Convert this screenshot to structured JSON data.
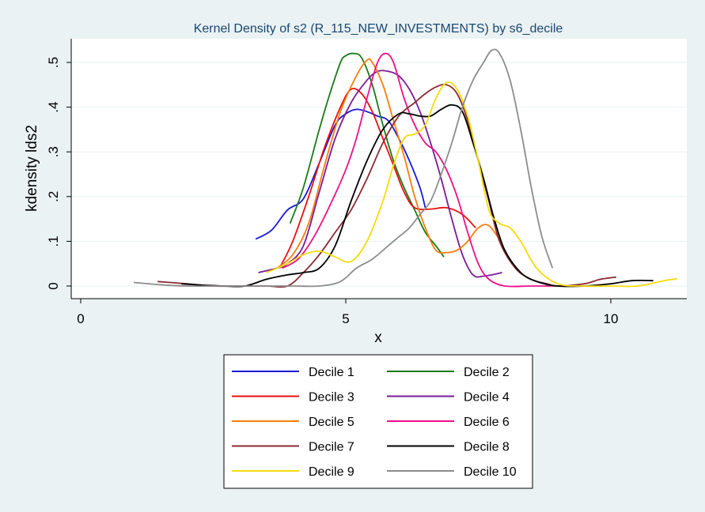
{
  "chart_data": {
    "type": "line",
    "title": "Kernel Density of s2 (R_115_NEW_INVESTMENTS) by s6_decile",
    "xlabel": "x",
    "ylabel": "kdensity lds2",
    "xlim": [
      0,
      11.5
    ],
    "ylim": [
      0,
      0.53
    ],
    "xticks": [
      0,
      5,
      10
    ],
    "xtick_labels": [
      "0",
      "5",
      "10"
    ],
    "yticks": [
      0,
      0.1,
      0.2,
      0.3,
      0.4,
      0.5
    ],
    "ytick_labels": [
      "0",
      ".1",
      ".2",
      ".3",
      ".4",
      ".5"
    ],
    "grid": true,
    "legend_position": "bottom",
    "series": [
      {
        "name": "Decile 1",
        "color": "#1a1ad6",
        "x": [
          3.3,
          3.6,
          3.9,
          4.2,
          4.5,
          4.8,
          5.0,
          5.2,
          5.4,
          5.6,
          5.8,
          6.0,
          6.2,
          6.4,
          6.5
        ],
        "y": [
          0.105,
          0.125,
          0.17,
          0.195,
          0.275,
          0.36,
          0.385,
          0.395,
          0.39,
          0.38,
          0.37,
          0.33,
          0.28,
          0.22,
          0.175
        ]
      },
      {
        "name": "Decile 2",
        "color": "#1a7a1a",
        "x": [
          3.95,
          4.2,
          4.5,
          4.7,
          4.9,
          5.0,
          5.15,
          5.3,
          5.5,
          5.7,
          5.9,
          6.1,
          6.3,
          6.5,
          6.7,
          6.85
        ],
        "y": [
          0.14,
          0.22,
          0.35,
          0.43,
          0.5,
          0.515,
          0.52,
          0.51,
          0.45,
          0.36,
          0.28,
          0.22,
          0.17,
          0.12,
          0.09,
          0.065
        ]
      },
      {
        "name": "Decile 3",
        "color": "#e8100f",
        "x": [
          3.75,
          4.0,
          4.3,
          4.6,
          4.9,
          5.1,
          5.3,
          5.5,
          5.7,
          5.9,
          6.1,
          6.3,
          6.6,
          6.9,
          7.2,
          7.45
        ],
        "y": [
          0.04,
          0.1,
          0.2,
          0.31,
          0.4,
          0.44,
          0.43,
          0.39,
          0.33,
          0.27,
          0.21,
          0.175,
          0.172,
          0.175,
          0.16,
          0.13
        ]
      },
      {
        "name": "Decile 4",
        "color": "#7a1a9a",
        "x": [
          3.35,
          3.7,
          3.9,
          4.2,
          4.5,
          4.8,
          5.1,
          5.4,
          5.6,
          5.8,
          6.0,
          6.2,
          6.4,
          6.6,
          6.8,
          7.0,
          7.2,
          7.4,
          7.6,
          7.95
        ],
        "y": [
          0.03,
          0.04,
          0.05,
          0.09,
          0.21,
          0.33,
          0.41,
          0.46,
          0.48,
          0.48,
          0.47,
          0.44,
          0.39,
          0.32,
          0.24,
          0.15,
          0.07,
          0.025,
          0.022,
          0.03
        ]
      },
      {
        "name": "Decile 5",
        "color": "#fa7d0a",
        "x": [
          3.7,
          4.0,
          4.3,
          4.6,
          4.9,
          5.2,
          5.4,
          5.5,
          5.7,
          5.9,
          6.1,
          6.3,
          6.5,
          6.7,
          6.9,
          7.1,
          7.3,
          7.5,
          7.7,
          7.95
        ],
        "y": [
          0.04,
          0.07,
          0.14,
          0.27,
          0.39,
          0.47,
          0.505,
          0.5,
          0.45,
          0.37,
          0.29,
          0.2,
          0.13,
          0.08,
          0.075,
          0.08,
          0.1,
          0.13,
          0.135,
          0.095
        ]
      },
      {
        "name": "Decile 6",
        "color": "#ed1089",
        "x": [
          3.8,
          4.1,
          4.4,
          4.7,
          5.0,
          5.2,
          5.4,
          5.6,
          5.75,
          5.9,
          6.1,
          6.3,
          6.5,
          6.7,
          6.9,
          7.1,
          7.3,
          7.5,
          7.7,
          8.0,
          8.5,
          9.0
        ],
        "y": [
          0.04,
          0.06,
          0.11,
          0.18,
          0.26,
          0.33,
          0.42,
          0.5,
          0.52,
          0.5,
          0.42,
          0.36,
          0.32,
          0.3,
          0.26,
          0.2,
          0.12,
          0.05,
          0.015,
          0.0,
          0.0,
          0.0
        ]
      },
      {
        "name": "Decile 7",
        "color": "#8c2a34",
        "x": [
          1.45,
          2.0,
          2.5,
          3.0,
          3.5,
          3.9,
          4.2,
          4.5,
          4.8,
          5.1,
          5.4,
          5.7,
          6.0,
          6.3,
          6.5,
          6.7,
          6.9,
          7.1,
          7.3,
          7.5,
          7.7,
          7.9,
          8.2,
          8.5,
          8.8,
          9.0,
          9.5,
          9.8,
          10.1
        ],
        "y": [
          0.01,
          0.005,
          0.0,
          0.0,
          0.0,
          0.0,
          0.03,
          0.07,
          0.12,
          0.17,
          0.24,
          0.32,
          0.38,
          0.41,
          0.43,
          0.445,
          0.45,
          0.43,
          0.37,
          0.28,
          0.19,
          0.1,
          0.04,
          0.015,
          0.005,
          0.0,
          0.005,
          0.015,
          0.02
        ]
      },
      {
        "name": "Decile 8",
        "color": "#000000",
        "x": [
          1.9,
          2.3,
          2.7,
          3.1,
          3.5,
          3.9,
          4.2,
          4.5,
          4.8,
          5.1,
          5.4,
          5.7,
          6.0,
          6.2,
          6.4,
          6.6,
          6.8,
          7.0,
          7.2,
          7.4,
          7.6,
          7.8,
          8.0,
          8.3,
          8.6,
          9.0,
          9.5,
          10.0,
          10.4,
          10.8
        ],
        "y": [
          0.005,
          0.002,
          0.0,
          0.0,
          0.015,
          0.025,
          0.03,
          0.04,
          0.09,
          0.19,
          0.28,
          0.35,
          0.385,
          0.385,
          0.38,
          0.38,
          0.395,
          0.405,
          0.39,
          0.32,
          0.24,
          0.15,
          0.08,
          0.03,
          0.01,
          0.0,
          0.0,
          0.005,
          0.012,
          0.012
        ]
      },
      {
        "name": "Decile 9",
        "color": "#f5dc0a",
        "x": [
          3.5,
          3.9,
          4.2,
          4.5,
          4.8,
          5.1,
          5.4,
          5.7,
          5.9,
          6.1,
          6.3,
          6.5,
          6.7,
          6.9,
          7.1,
          7.3,
          7.5,
          7.7,
          7.9,
          8.1,
          8.3,
          8.6,
          9.0,
          9.5,
          10.0,
          10.5,
          11.0,
          11.25
        ],
        "y": [
          0.03,
          0.05,
          0.07,
          0.078,
          0.065,
          0.055,
          0.1,
          0.19,
          0.27,
          0.33,
          0.34,
          0.36,
          0.42,
          0.455,
          0.44,
          0.38,
          0.28,
          0.17,
          0.14,
          0.13,
          0.1,
          0.04,
          0.005,
          0.0,
          0.0,
          0.0,
          0.012,
          0.016
        ]
      },
      {
        "name": "Decile 10",
        "color": "#8c8c8c",
        "x": [
          1.0,
          1.5,
          2.0,
          2.5,
          3.0,
          3.5,
          4.0,
          4.5,
          4.9,
          5.2,
          5.5,
          5.8,
          6.0,
          6.2,
          6.4,
          6.6,
          6.8,
          7.0,
          7.2,
          7.4,
          7.6,
          7.75,
          7.9,
          8.1,
          8.3,
          8.5,
          8.7,
          8.9
        ],
        "y": [
          0.008,
          0.003,
          0.0,
          0.0,
          0.0,
          0.0,
          0.0,
          0.0,
          0.01,
          0.04,
          0.06,
          0.09,
          0.11,
          0.13,
          0.16,
          0.19,
          0.25,
          0.32,
          0.4,
          0.46,
          0.5,
          0.527,
          0.52,
          0.46,
          0.35,
          0.22,
          0.11,
          0.04
        ]
      }
    ]
  }
}
